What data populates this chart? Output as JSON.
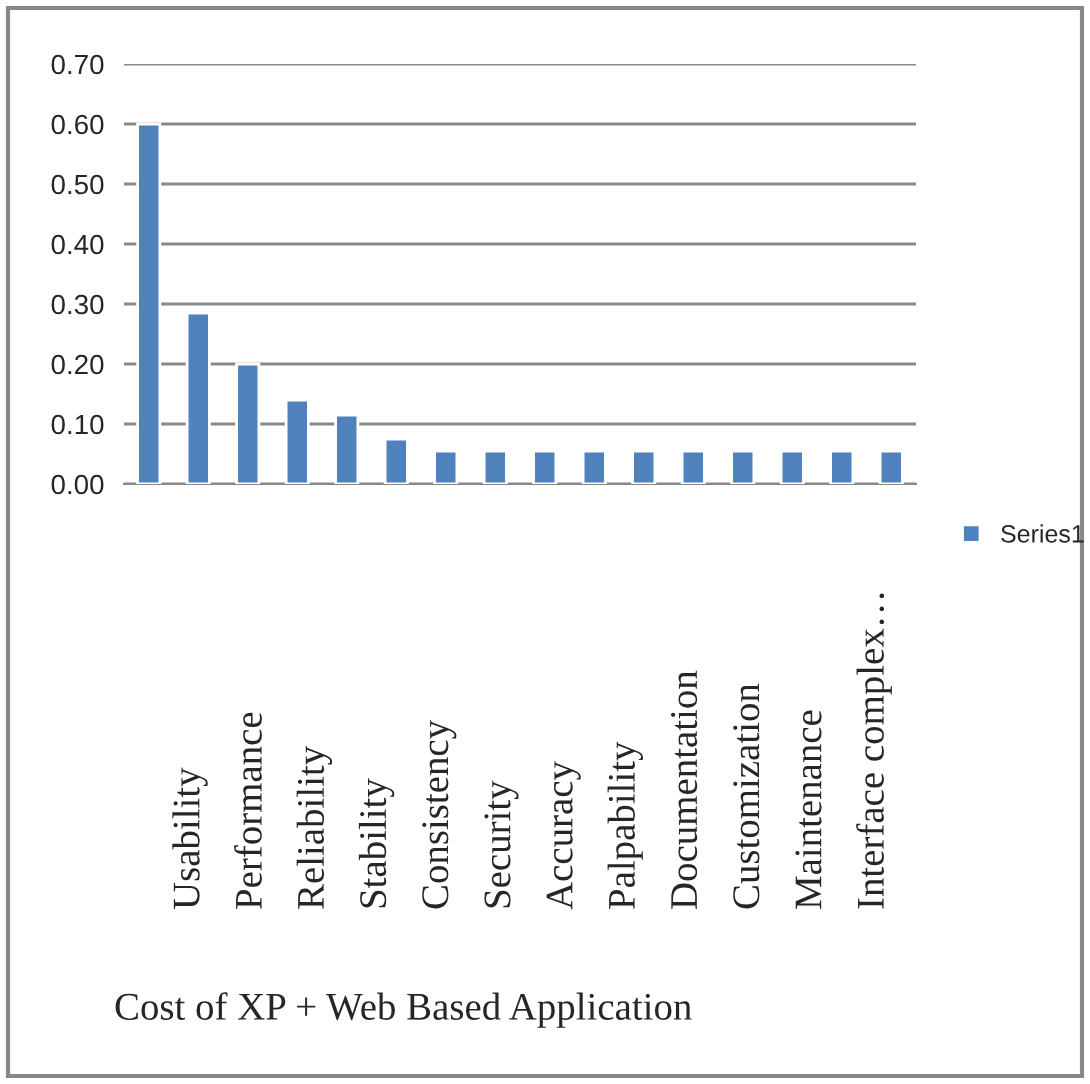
{
  "chart_data": {
    "type": "bar",
    "categories": [
      null,
      null,
      null,
      null,
      null,
      null,
      null,
      null,
      null,
      null,
      null,
      null,
      null,
      null,
      null,
      null
    ],
    "series": [
      {
        "name": "Series1",
        "color": "#4f81bd",
        "values": [
          0.6,
          0.285,
          0.2,
          0.14,
          0.115,
          0.075,
          0.055,
          0.055,
          0.055,
          0.055,
          0.055,
          0.055,
          0.055,
          0.055,
          0.055,
          0.055
        ]
      }
    ],
    "ylim": [
      0,
      0.7
    ],
    "yticks": [
      {
        "value": 0,
        "label": "0.00"
      },
      {
        "value": 0.1,
        "label": "0.10"
      },
      {
        "value": 0.2,
        "label": "0.20"
      },
      {
        "value": 0.3,
        "label": "0.30"
      },
      {
        "value": 0.4,
        "label": "0.40"
      },
      {
        "value": 0.5,
        "label": "0.50"
      },
      {
        "value": 0.6,
        "label": "0.60"
      },
      {
        "value": 0.7,
        "label": "0.70"
      }
    ],
    "grid": "y",
    "legend": "right",
    "annotations": [
      "Usability",
      "Performance",
      "Reliability",
      "Stability",
      "Consistency",
      "Security",
      "Accuracy",
      "Palpability",
      "Documentation",
      "Customization",
      "Maintenance",
      "Interface complex…",
      "Cost of XP + Web Based Application"
    ]
  }
}
